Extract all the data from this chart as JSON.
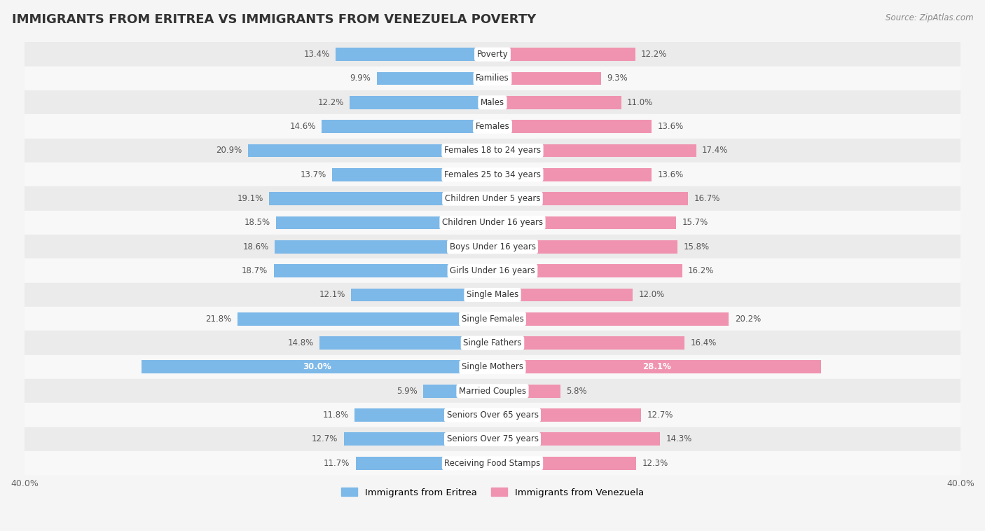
{
  "title": "IMMIGRANTS FROM ERITREA VS IMMIGRANTS FROM VENEZUELA POVERTY",
  "source": "Source: ZipAtlas.com",
  "categories": [
    "Poverty",
    "Families",
    "Males",
    "Females",
    "Females 18 to 24 years",
    "Females 25 to 34 years",
    "Children Under 5 years",
    "Children Under 16 years",
    "Boys Under 16 years",
    "Girls Under 16 years",
    "Single Males",
    "Single Females",
    "Single Fathers",
    "Single Mothers",
    "Married Couples",
    "Seniors Over 65 years",
    "Seniors Over 75 years",
    "Receiving Food Stamps"
  ],
  "eritrea_values": [
    13.4,
    9.9,
    12.2,
    14.6,
    20.9,
    13.7,
    19.1,
    18.5,
    18.6,
    18.7,
    12.1,
    21.8,
    14.8,
    30.0,
    5.9,
    11.8,
    12.7,
    11.7
  ],
  "venezuela_values": [
    12.2,
    9.3,
    11.0,
    13.6,
    17.4,
    13.6,
    16.7,
    15.7,
    15.8,
    16.2,
    12.0,
    20.2,
    16.4,
    28.1,
    5.8,
    12.7,
    14.3,
    12.3
  ],
  "eritrea_color": "#7cb8e8",
  "venezuela_color": "#f093b0",
  "eritrea_label": "Immigrants from Eritrea",
  "venezuela_label": "Immigrants from Venezuela",
  "axis_max": 40.0,
  "background_color": "#f5f5f5",
  "row_colors_odd": "#ebebeb",
  "row_colors_even": "#f8f8f8",
  "title_fontsize": 13,
  "label_fontsize": 8.5,
  "value_fontsize": 8.5,
  "highlight_eritrea": [
    13
  ],
  "highlight_venezuela": [
    13
  ]
}
